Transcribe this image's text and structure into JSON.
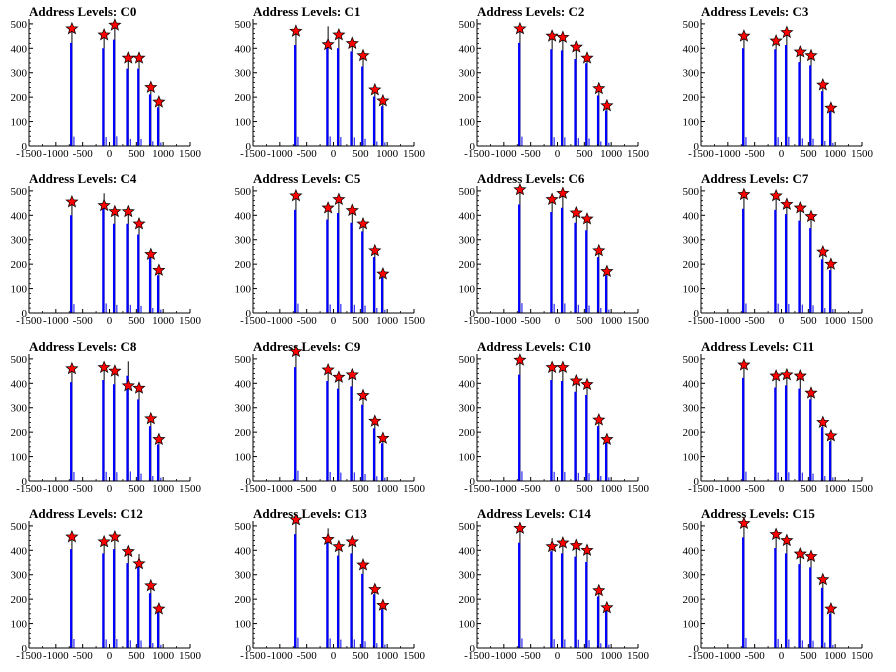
{
  "chart_data": [
    {
      "type": "bar",
      "title": "Address Levels: C0",
      "xlim": [
        -1500,
        1500
      ],
      "ylim": [
        0,
        520
      ],
      "xticks": [
        "-1500",
        "-1000",
        "-500",
        "0",
        "500",
        "1000",
        "1500"
      ],
      "yticks": [
        "0",
        "100",
        "200",
        "300",
        "400",
        "500"
      ],
      "series": [
        {
          "x": [
            -700,
            -100,
            100,
            350,
            550,
            770,
            920
          ],
          "y": [
            480,
            455,
            495,
            360,
            360,
            240,
            180
          ]
        }
      ],
      "markers": [
        {
          "x": -700,
          "y": 480
        },
        {
          "x": -100,
          "y": 455
        },
        {
          "x": 100,
          "y": 495
        },
        {
          "x": 350,
          "y": 360
        },
        {
          "x": 550,
          "y": 360
        },
        {
          "x": 770,
          "y": 240
        },
        {
          "x": 920,
          "y": 180
        }
      ]
    },
    {
      "type": "bar",
      "title": "Address Levels: C1",
      "xlim": [
        -1500,
        1500
      ],
      "ylim": [
        0,
        520
      ],
      "xticks": [
        "-1500",
        "-1000",
        "-500",
        "0",
        "500",
        "1000",
        "1500"
      ],
      "yticks": [
        "0",
        "100",
        "200",
        "300",
        "400",
        "500"
      ],
      "series": [
        {
          "x": [
            -700,
            -100,
            100,
            350,
            550,
            770,
            920
          ],
          "y": [
            470,
            490,
            455,
            440,
            370,
            230,
            185
          ]
        }
      ],
      "markers": [
        {
          "x": -700,
          "y": 470
        },
        {
          "x": -100,
          "y": 415
        },
        {
          "x": 100,
          "y": 455
        },
        {
          "x": 350,
          "y": 420
        },
        {
          "x": 550,
          "y": 370
        },
        {
          "x": 770,
          "y": 230
        },
        {
          "x": 920,
          "y": 185
        }
      ]
    },
    {
      "type": "bar",
      "title": "Address Levels: C2",
      "xlim": [
        -1500,
        1500
      ],
      "ylim": [
        0,
        520
      ],
      "xticks": [
        "-1500",
        "-1000",
        "-500",
        "0",
        "500",
        "1000",
        "1500"
      ],
      "yticks": [
        "0",
        "100",
        "200",
        "300",
        "400",
        "500"
      ],
      "series": [
        {
          "x": [
            -700,
            -100,
            100,
            350,
            550,
            770,
            920
          ],
          "y": [
            480,
            450,
            445,
            405,
            385,
            235,
            165
          ]
        }
      ],
      "markers": [
        {
          "x": -700,
          "y": 480
        },
        {
          "x": -100,
          "y": 450
        },
        {
          "x": 100,
          "y": 445
        },
        {
          "x": 350,
          "y": 405
        },
        {
          "x": 550,
          "y": 360
        },
        {
          "x": 770,
          "y": 235
        },
        {
          "x": 920,
          "y": 165
        }
      ]
    },
    {
      "type": "bar",
      "title": "Address Levels: C3",
      "xlim": [
        -1500,
        1500
      ],
      "ylim": [
        0,
        520
      ],
      "xticks": [
        "-1500",
        "-1000",
        "-500",
        "0",
        "500",
        "1000",
        "1500"
      ],
      "yticks": [
        "0",
        "100",
        "200",
        "300",
        "400",
        "500"
      ],
      "series": [
        {
          "x": [
            -700,
            -100,
            100,
            350,
            550,
            770,
            920
          ],
          "y": [
            455,
            450,
            470,
            390,
            375,
            255,
            160
          ]
        }
      ],
      "markers": [
        {
          "x": -700,
          "y": 450
        },
        {
          "x": -100,
          "y": 430
        },
        {
          "x": 100,
          "y": 465
        },
        {
          "x": 350,
          "y": 385
        },
        {
          "x": 550,
          "y": 370
        },
        {
          "x": 770,
          "y": 250
        },
        {
          "x": 920,
          "y": 155
        }
      ]
    },
    {
      "type": "bar",
      "title": "Address Levels: C4",
      "xlim": [
        -1500,
        1500
      ],
      "ylim": [
        0,
        520
      ],
      "xticks": [
        "-1500",
        "-1000",
        "-500",
        "0",
        "500",
        "1000",
        "1500"
      ],
      "yticks": [
        "0",
        "100",
        "200",
        "300",
        "400",
        "500"
      ],
      "series": [
        {
          "x": [
            -700,
            -100,
            100,
            350,
            550,
            770,
            920
          ],
          "y": [
            455,
            490,
            415,
            415,
            365,
            255,
            175
          ]
        }
      ],
      "markers": [
        {
          "x": -700,
          "y": 455
        },
        {
          "x": -100,
          "y": 440
        },
        {
          "x": 100,
          "y": 415
        },
        {
          "x": 350,
          "y": 415
        },
        {
          "x": 550,
          "y": 365
        },
        {
          "x": 770,
          "y": 240
        },
        {
          "x": 920,
          "y": 175
        }
      ]
    },
    {
      "type": "bar",
      "title": "Address Levels: C5",
      "xlim": [
        -1500,
        1500
      ],
      "ylim": [
        0,
        520
      ],
      "xticks": [
        "-1500",
        "-1000",
        "-500",
        "0",
        "500",
        "1000",
        "1500"
      ],
      "yticks": [
        "0",
        "100",
        "200",
        "300",
        "400",
        "500"
      ],
      "series": [
        {
          "x": [
            -700,
            -100,
            100,
            350,
            550,
            770,
            920
          ],
          "y": [
            480,
            435,
            465,
            420,
            380,
            260,
            165
          ]
        }
      ],
      "markers": [
        {
          "x": -700,
          "y": 480
        },
        {
          "x": -100,
          "y": 430
        },
        {
          "x": 100,
          "y": 465
        },
        {
          "x": 350,
          "y": 420
        },
        {
          "x": 550,
          "y": 365
        },
        {
          "x": 770,
          "y": 255
        },
        {
          "x": 920,
          "y": 160
        }
      ]
    },
    {
      "type": "bar",
      "title": "Address Levels: C6",
      "xlim": [
        -1500,
        1500
      ],
      "ylim": [
        0,
        520
      ],
      "xticks": [
        "-1500",
        "-1000",
        "-500",
        "0",
        "500",
        "1000",
        "1500"
      ],
      "yticks": [
        "0",
        "100",
        "200",
        "300",
        "400",
        "500"
      ],
      "series": [
        {
          "x": [
            -700,
            -100,
            100,
            350,
            550,
            770,
            920
          ],
          "y": [
            505,
            470,
            490,
            420,
            385,
            260,
            175
          ]
        }
      ],
      "markers": [
        {
          "x": -700,
          "y": 505
        },
        {
          "x": -100,
          "y": 465
        },
        {
          "x": 100,
          "y": 490
        },
        {
          "x": 350,
          "y": 410
        },
        {
          "x": 550,
          "y": 385
        },
        {
          "x": 770,
          "y": 255
        },
        {
          "x": 920,
          "y": 170
        }
      ]
    },
    {
      "type": "bar",
      "title": "Address Levels: C7",
      "xlim": [
        -1500,
        1500
      ],
      "ylim": [
        0,
        520
      ],
      "xticks": [
        "-1500",
        "-1000",
        "-500",
        "0",
        "500",
        "1000",
        "1500"
      ],
      "yticks": [
        "0",
        "100",
        "200",
        "300",
        "400",
        "500"
      ],
      "series": [
        {
          "x": [
            -700,
            -100,
            100,
            350,
            550,
            770,
            920
          ],
          "y": [
            485,
            480,
            460,
            430,
            395,
            250,
            200
          ]
        }
      ],
      "markers": [
        {
          "x": -700,
          "y": 485
        },
        {
          "x": -100,
          "y": 480
        },
        {
          "x": 100,
          "y": 445
        },
        {
          "x": 350,
          "y": 430
        },
        {
          "x": 550,
          "y": 395
        },
        {
          "x": 770,
          "y": 250
        },
        {
          "x": 920,
          "y": 200
        }
      ]
    },
    {
      "type": "bar",
      "title": "Address Levels: C8",
      "xlim": [
        -1500,
        1500
      ],
      "ylim": [
        0,
        520
      ],
      "xticks": [
        "-1500",
        "-1000",
        "-500",
        "0",
        "500",
        "1000",
        "1500"
      ],
      "yticks": [
        "0",
        "100",
        "200",
        "300",
        "400",
        "500"
      ],
      "series": [
        {
          "x": [
            -700,
            -100,
            100,
            350,
            550,
            770,
            920
          ],
          "y": [
            460,
            470,
            450,
            490,
            380,
            255,
            170
          ]
        }
      ],
      "markers": [
        {
          "x": -700,
          "y": 460
        },
        {
          "x": -100,
          "y": 465
        },
        {
          "x": 100,
          "y": 450
        },
        {
          "x": 350,
          "y": 390
        },
        {
          "x": 550,
          "y": 380
        },
        {
          "x": 770,
          "y": 255
        },
        {
          "x": 920,
          "y": 170
        }
      ]
    },
    {
      "type": "bar",
      "title": "Address Levels: C9",
      "xlim": [
        -1500,
        1500
      ],
      "ylim": [
        0,
        520
      ],
      "xticks": [
        "-1500",
        "-1000",
        "-500",
        "0",
        "500",
        "1000",
        "1500"
      ],
      "yticks": [
        "0",
        "100",
        "200",
        "300",
        "400",
        "500"
      ],
      "series": [
        {
          "x": [
            -700,
            -100,
            100,
            350,
            550,
            770,
            920
          ],
          "y": [
            530,
            465,
            430,
            440,
            355,
            245,
            175
          ]
        }
      ],
      "markers": [
        {
          "x": -700,
          "y": 530
        },
        {
          "x": -100,
          "y": 455
        },
        {
          "x": 100,
          "y": 425
        },
        {
          "x": 350,
          "y": 435
        },
        {
          "x": 550,
          "y": 350
        },
        {
          "x": 770,
          "y": 245
        },
        {
          "x": 920,
          "y": 175
        }
      ]
    },
    {
      "type": "bar",
      "title": "Address Levels: C10",
      "xlim": [
        -1500,
        1500
      ],
      "ylim": [
        0,
        520
      ],
      "xticks": [
        "-1500",
        "-1000",
        "-500",
        "0",
        "500",
        "1000",
        "1500"
      ],
      "yticks": [
        "0",
        "100",
        "200",
        "300",
        "400",
        "500"
      ],
      "series": [
        {
          "x": [
            -700,
            -100,
            100,
            350,
            550,
            770,
            920
          ],
          "y": [
            495,
            470,
            465,
            415,
            400,
            255,
            185
          ]
        }
      ],
      "markers": [
        {
          "x": -700,
          "y": 495
        },
        {
          "x": -100,
          "y": 465
        },
        {
          "x": 100,
          "y": 465
        },
        {
          "x": 350,
          "y": 410
        },
        {
          "x": 550,
          "y": 395
        },
        {
          "x": 770,
          "y": 250
        },
        {
          "x": 920,
          "y": 170
        }
      ]
    },
    {
      "type": "bar",
      "title": "Address Levels: C11",
      "xlim": [
        -1500,
        1500
      ],
      "ylim": [
        0,
        520
      ],
      "xticks": [
        "-1500",
        "-1000",
        "-500",
        "0",
        "500",
        "1000",
        "1500"
      ],
      "yticks": [
        "0",
        "100",
        "200",
        "300",
        "400",
        "500"
      ],
      "series": [
        {
          "x": [
            -700,
            -100,
            100,
            350,
            550,
            770,
            920
          ],
          "y": [
            480,
            435,
            445,
            430,
            380,
            250,
            185
          ]
        }
      ],
      "markers": [
        {
          "x": -700,
          "y": 475
        },
        {
          "x": -100,
          "y": 430
        },
        {
          "x": 100,
          "y": 435
        },
        {
          "x": 350,
          "y": 430
        },
        {
          "x": 550,
          "y": 360
        },
        {
          "x": 770,
          "y": 240
        },
        {
          "x": 920,
          "y": 185
        }
      ]
    },
    {
      "type": "bar",
      "title": "Address Levels: C12",
      "xlim": [
        -1500,
        1500
      ],
      "ylim": [
        0,
        520
      ],
      "xticks": [
        "-1500",
        "-1000",
        "-500",
        "0",
        "500",
        "1000",
        "1500"
      ],
      "yticks": [
        "0",
        "100",
        "200",
        "300",
        "400",
        "500"
      ],
      "series": [
        {
          "x": [
            -700,
            -100,
            100,
            350,
            550,
            770,
            920
          ],
          "y": [
            460,
            440,
            460,
            395,
            385,
            255,
            165
          ]
        }
      ],
      "markers": [
        {
          "x": -700,
          "y": 455
        },
        {
          "x": -100,
          "y": 435
        },
        {
          "x": 100,
          "y": 455
        },
        {
          "x": 350,
          "y": 395
        },
        {
          "x": 550,
          "y": 345
        },
        {
          "x": 770,
          "y": 255
        },
        {
          "x": 920,
          "y": 160
        }
      ]
    },
    {
      "type": "bar",
      "title": "Address Levels: C13",
      "xlim": [
        -1500,
        1500
      ],
      "ylim": [
        0,
        520
      ],
      "xticks": [
        "-1500",
        "-1000",
        "-500",
        "0",
        "500",
        "1000",
        "1500"
      ],
      "yticks": [
        "0",
        "100",
        "200",
        "300",
        "400",
        "500"
      ],
      "series": [
        {
          "x": [
            -700,
            -100,
            100,
            350,
            550,
            770,
            920
          ],
          "y": [
            530,
            490,
            430,
            440,
            345,
            250,
            180
          ]
        }
      ],
      "markers": [
        {
          "x": -700,
          "y": 525
        },
        {
          "x": -100,
          "y": 445
        },
        {
          "x": 100,
          "y": 415
        },
        {
          "x": 350,
          "y": 435
        },
        {
          "x": 550,
          "y": 340
        },
        {
          "x": 770,
          "y": 240
        },
        {
          "x": 920,
          "y": 175
        }
      ]
    },
    {
      "type": "bar",
      "title": "Address Levels: C14",
      "xlim": [
        -1500,
        1500
      ],
      "ylim": [
        0,
        520
      ],
      "xticks": [
        "-1500",
        "-1000",
        "-500",
        "0",
        "500",
        "1000",
        "1500"
      ],
      "yticks": [
        "0",
        "100",
        "200",
        "300",
        "400",
        "500"
      ],
      "series": [
        {
          "x": [
            -700,
            -100,
            100,
            350,
            550,
            770,
            920
          ],
          "y": [
            490,
            450,
            440,
            425,
            400,
            240,
            170
          ]
        }
      ],
      "markers": [
        {
          "x": -700,
          "y": 490
        },
        {
          "x": -100,
          "y": 415
        },
        {
          "x": 100,
          "y": 430
        },
        {
          "x": 350,
          "y": 420
        },
        {
          "x": 550,
          "y": 400
        },
        {
          "x": 770,
          "y": 235
        },
        {
          "x": 920,
          "y": 165
        }
      ]
    },
    {
      "type": "bar",
      "title": "Address Levels: C15",
      "xlim": [
        -1500,
        1500
      ],
      "ylim": [
        0,
        520
      ],
      "xticks": [
        "-1500",
        "-1000",
        "-500",
        "0",
        "500",
        "1000",
        "1500"
      ],
      "yticks": [
        "0",
        "100",
        "200",
        "300",
        "400",
        "500"
      ],
      "series": [
        {
          "x": [
            -700,
            -100,
            100,
            350,
            550,
            770,
            920
          ],
          "y": [
            515,
            465,
            440,
            390,
            375,
            280,
            160
          ]
        }
      ],
      "markers": [
        {
          "x": -700,
          "y": 510
        },
        {
          "x": -100,
          "y": 465
        },
        {
          "x": 100,
          "y": 440
        },
        {
          "x": 350,
          "y": 385
        },
        {
          "x": 550,
          "y": 375
        },
        {
          "x": 770,
          "y": 280
        },
        {
          "x": 920,
          "y": 160
        }
      ]
    }
  ],
  "colors": {
    "bar": "#0000ff",
    "peak": "#000000",
    "marker_fill": "#ff0000",
    "marker_stroke": "#000000",
    "axis": "#000000"
  }
}
